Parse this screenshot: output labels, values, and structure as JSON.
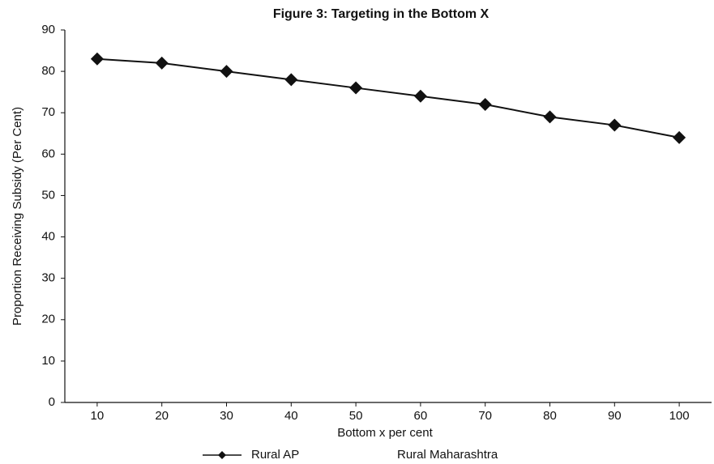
{
  "chart_data": {
    "type": "line",
    "title": "Figure 3: Targeting in the Bottom X",
    "x_label": "Bottom x per cent",
    "y_label": "Proportion Receiving Subsidy (Per Cent)",
    "x": [
      10,
      20,
      30,
      40,
      50,
      60,
      70,
      80,
      90,
      100
    ],
    "xlim": [
      5,
      105
    ],
    "xticks": [
      10,
      20,
      30,
      40,
      50,
      60,
      70,
      80,
      90,
      100
    ],
    "ylim": [
      0,
      90
    ],
    "yticks": [
      0,
      10,
      20,
      30,
      40,
      50,
      60,
      70,
      80,
      90
    ],
    "series": [
      {
        "name": "Rural AP",
        "color": "#111111",
        "values": [
          83,
          82,
          80,
          78,
          76,
          74,
          72,
          69,
          67,
          64
        ]
      },
      {
        "name": "Rural Maharashtra",
        "color": "#111111",
        "values": [
          null,
          null,
          null,
          null,
          null,
          null,
          null,
          null,
          null,
          null
        ]
      }
    ]
  }
}
